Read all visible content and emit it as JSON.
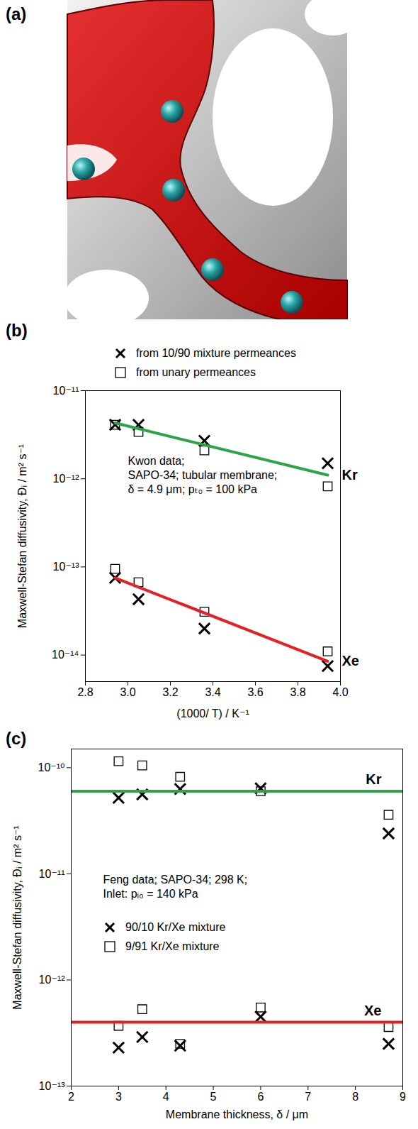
{
  "chart_data": [
    {
      "type": "image",
      "title": "(a)"
    },
    {
      "type": "scatter",
      "title": "(b)",
      "xlabel": "(1000/ T) / K⁻¹",
      "ylabel": "Maxwell-Stefan diffusivity, Đᵢ / m² s⁻¹",
      "log": "y",
      "grid": false,
      "legend": "top",
      "xlim": [
        2.8,
        4.0
      ],
      "xticks": [
        2.8,
        {
          "value": 3,
          "label": "3.0"
        },
        3.2,
        3.4,
        3.6,
        3.8,
        {
          "value": 4,
          "label": "4.0"
        }
      ],
      "ylim": [
        5e-15,
        1e-11
      ],
      "yticks": [
        {
          "value": 1e-14,
          "label": "10⁻¹⁴"
        },
        {
          "value": 1e-13,
          "label": "10⁻¹³"
        },
        {
          "value": 1e-12,
          "label": "10⁻¹²"
        },
        {
          "value": 1e-11,
          "label": "10⁻¹¹"
        }
      ],
      "annotation": [
        "Kwon data;",
        "SAPO-34; tubular membrane;",
        "δ = 4.9 μm; pₜ₀ = 100 kPa"
      ],
      "series": [
        {
          "name": "from 10/90 mixture permeances",
          "type": "scatter",
          "marker": "x",
          "color": "#000000",
          "x": [
            2.94,
            3.05,
            3.36,
            3.94,
            2.94,
            3.05,
            3.36,
            3.94
          ],
          "values": [
            4.1e-12,
            4.1e-12,
            2.7e-12,
            1.5e-12,
            7.5e-14,
            4.3e-14,
            2e-14,
            7.5e-15
          ]
        },
        {
          "name": "from unary permeances",
          "type": "scatter",
          "marker": "square",
          "color": "#000000",
          "x": [
            2.94,
            3.05,
            3.36,
            3.94,
            2.94,
            3.05,
            3.36,
            3.94
          ],
          "values": [
            4.1e-12,
            3.4e-12,
            2.1e-12,
            8.2e-13,
            9.5e-14,
            6.7e-14,
            3.1e-14,
            1.1e-14
          ]
        },
        {
          "name": "Kr",
          "type": "line",
          "color": "#2ca548",
          "x": [
            2.94,
            3.94
          ],
          "values": [
            4.3e-12,
            1.1e-12
          ]
        },
        {
          "name": "Xe",
          "type": "line",
          "color": "#e41f26",
          "x": [
            2.94,
            3.94
          ],
          "values": [
            7.5e-14,
            8.5e-15
          ]
        }
      ]
    },
    {
      "type": "scatter",
      "title": "(c)",
      "xlabel": "Membrane thickness, δ / μm",
      "ylabel": "Maxwell-Stefan diffusivity, Đᵢ / m² s⁻¹",
      "log": "y",
      "grid": false,
      "legend": "left",
      "xlim": [
        2,
        9
      ],
      "xticks": [
        2,
        3,
        4,
        5,
        6,
        7,
        8,
        9
      ],
      "ylim": [
        1e-13,
        1.5e-10
      ],
      "yticks": [
        {
          "value": 1e-13,
          "label": "10⁻¹³"
        },
        {
          "value": 1e-12,
          "label": "10⁻¹²"
        },
        {
          "value": 1e-11,
          "label": "10⁻¹¹"
        },
        {
          "value": 1e-10,
          "label": "10⁻¹⁰"
        }
      ],
      "annotation": [
        "Feng data; SAPO-34; 298 K;",
        "Inlet: pᵢ₀ = 140 kPa"
      ],
      "series": [
        {
          "name": "90/10 Kr/Xe mixture",
          "type": "scatter",
          "marker": "x",
          "color": "#000000",
          "x": [
            3,
            3.5,
            4.3,
            6,
            8.7,
            3,
            3.5,
            4.3,
            6,
            8.7
          ],
          "values": [
            5.2e-11,
            5.6e-11,
            6.3e-11,
            6.4e-11,
            2.4e-11,
            2.3e-13,
            2.9e-13,
            2.4e-13,
            4.5e-13,
            2.5e-13
          ]
        },
        {
          "name": "9/91 Kr/Xe mixture",
          "type": "scatter",
          "marker": "square",
          "color": "#000000",
          "x": [
            3,
            3.5,
            4.3,
            6,
            8.7,
            3,
            3.5,
            4.3,
            6,
            8.7
          ],
          "values": [
            1.15e-10,
            1.05e-10,
            8.2e-11,
            6e-11,
            3.6e-11,
            3.7e-13,
            5.3e-13,
            2.5e-13,
            5.5e-13,
            3.6e-13
          ]
        },
        {
          "name": "Kr",
          "type": "line",
          "color": "#2ca548",
          "x": [
            2,
            9
          ],
          "values": [
            6e-11,
            6e-11
          ]
        },
        {
          "name": "Xe",
          "type": "line",
          "color": "#e41f26",
          "x": [
            2,
            9
          ],
          "values": [
            4e-13,
            4e-13
          ]
        }
      ]
    }
  ]
}
